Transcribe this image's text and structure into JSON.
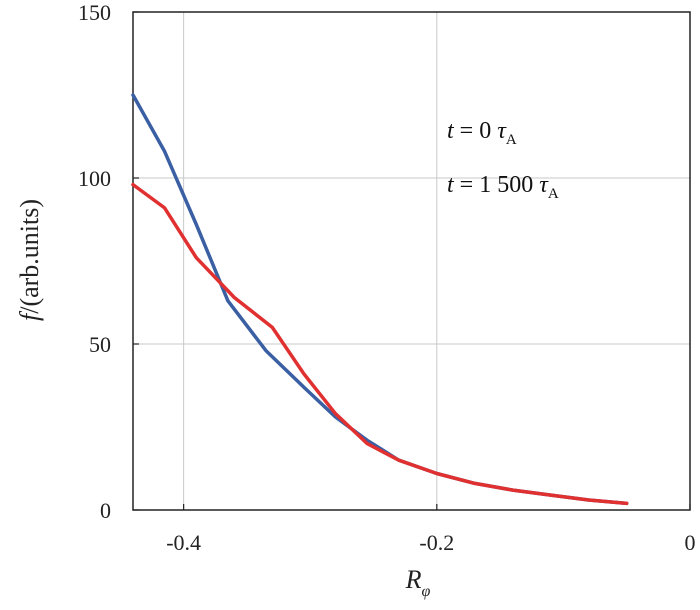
{
  "chart_data": {
    "type": "line",
    "xlabel": {
      "main": "R",
      "sub": "φ"
    },
    "ylabel": {
      "italic": "f",
      "rest": "/(arb.units)"
    },
    "xlim": [
      -0.44,
      0.0
    ],
    "ylim": [
      0,
      150
    ],
    "xticks": [
      -0.4,
      -0.2,
      0
    ],
    "xtick_labels": [
      "-0.4",
      "-0.2",
      "0"
    ],
    "yticks": [
      0,
      50,
      100,
      150
    ],
    "ytick_labels": [
      "0",
      "50",
      "100",
      "150"
    ],
    "grid": true,
    "legend_position": "top-right",
    "series": [
      {
        "name": "t = 0 τA",
        "legend": {
          "var": "t",
          "eq": " = 0 ",
          "tau": "τ",
          "sub": "A"
        },
        "color": "#3a5fa3",
        "x": [
          -0.44,
          -0.415,
          -0.39,
          -0.365,
          -0.335,
          -0.305,
          -0.28,
          -0.255,
          -0.23,
          -0.2,
          -0.17,
          -0.14,
          -0.11,
          -0.08,
          -0.05
        ],
        "y": [
          125,
          108,
          86,
          63,
          48,
          37,
          28,
          21,
          15,
          11,
          8,
          6,
          4.5,
          3,
          2
        ]
      },
      {
        "name": "t = 1 500 τA",
        "legend": {
          "var": "t",
          "eq": " = 1 500 ",
          "tau": "τ",
          "sub": "A"
        },
        "color": "#e03030",
        "x": [
          -0.44,
          -0.415,
          -0.39,
          -0.36,
          -0.33,
          -0.305,
          -0.28,
          -0.255,
          -0.23,
          -0.2,
          -0.17,
          -0.14,
          -0.11,
          -0.08,
          -0.05
        ],
        "y": [
          98,
          91,
          76,
          64,
          55,
          41,
          29,
          20,
          15,
          11,
          8,
          6,
          4.5,
          3,
          2
        ]
      }
    ]
  }
}
